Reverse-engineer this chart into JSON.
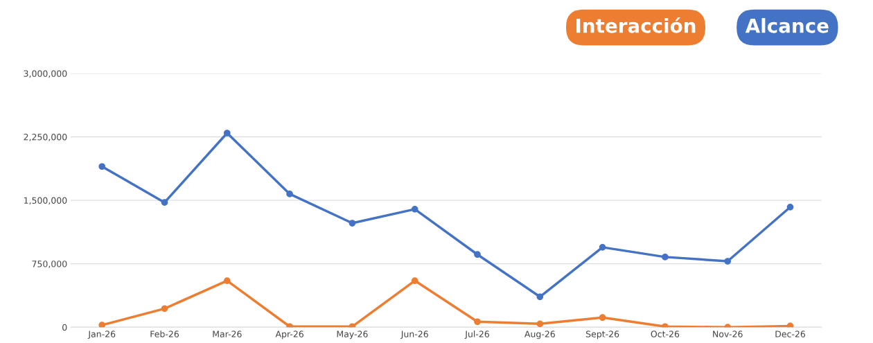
{
  "chart_data": {
    "type": "line",
    "categories": [
      "Jan-26",
      "Feb-26",
      "Mar-26",
      "Apr-26",
      "May-26",
      "Jun-26",
      "Jul-26",
      "Aug-26",
      "Sept-26",
      "Oct-26",
      "Nov-26",
      "Dec-26"
    ],
    "series": [
      {
        "name": "Interacción",
        "color": "#ed7d31",
        "values": [
          25000,
          220000,
          550000,
          8000,
          8000,
          550000,
          65000,
          40000,
          115000,
          8000,
          0,
          15000
        ]
      },
      {
        "name": "Alcance",
        "color": "#4472c4",
        "values": [
          1900000,
          1475000,
          2295000,
          1575000,
          1230000,
          1395000,
          860000,
          360000,
          945000,
          830000,
          780000,
          1420000
        ]
      }
    ],
    "ylim": [
      0,
      3000000
    ],
    "yticks": [
      0,
      {
        "value": 750000,
        "label": "750,000"
      },
      {
        "value": 1500000,
        "label": "1,500,000"
      },
      {
        "value": 2250000,
        "label": "2,250,000"
      },
      {
        "value": 3000000,
        "label": "3,000,000"
      }
    ],
    "grid": "y",
    "legend": "top right",
    "marker": "circle",
    "line_style": "solid"
  }
}
